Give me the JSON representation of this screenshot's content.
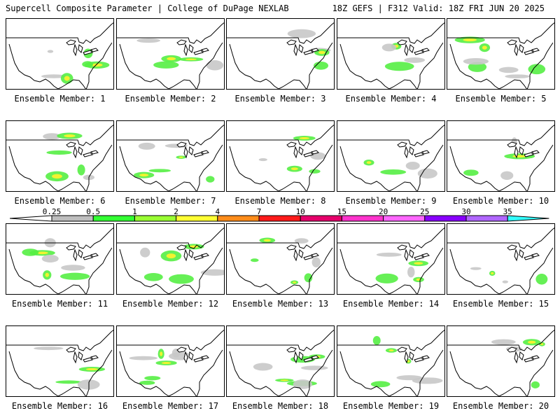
{
  "header": {
    "left_title": "Supercell Composite Parameter | College of DuPage NEXLAB",
    "right_title": "18Z GEFS | F312 Valid: 18Z FRI JUN 20 2025"
  },
  "colorbar": {
    "ticks": [
      "0.25",
      "0.5",
      "1",
      "2",
      "4",
      "7",
      "10",
      "15",
      "20",
      "25",
      "30",
      "35"
    ],
    "colors": [
      "#bdbdbd",
      "#33ff33",
      "#99ff33",
      "#ffff33",
      "#ff8c1a",
      "#ff1a1a",
      "#e6006b",
      "#ff33cc",
      "#ff66ff",
      "#8800ff",
      "#b066ff",
      "#33ffff"
    ]
  },
  "panels": [
    {
      "label": "Ensemble Member: 1"
    },
    {
      "label": "Ensemble Member: 2"
    },
    {
      "label": "Ensemble Member: 3"
    },
    {
      "label": "Ensemble Member: 4"
    },
    {
      "label": "Ensemble Member: 5"
    },
    {
      "label": "Ensemble Member: 6"
    },
    {
      "label": "Ensemble Member: 7"
    },
    {
      "label": "Ensemble Member: 8"
    },
    {
      "label": "Ensemble Member: 9"
    },
    {
      "label": "Ensemble Member: 10"
    },
    {
      "label": "Ensemble Member: 11"
    },
    {
      "label": "Ensemble Member: 12"
    },
    {
      "label": "Ensemble Member: 13"
    },
    {
      "label": "Ensemble Member: 14"
    },
    {
      "label": "Ensemble Member: 15"
    },
    {
      "label": "Ensemble Member: 16"
    },
    {
      "label": "Ensemble Member: 17"
    },
    {
      "label": "Ensemble Member: 18"
    },
    {
      "label": "Ensemble Member: 19"
    },
    {
      "label": "Ensemble Member: 20"
    }
  ]
}
